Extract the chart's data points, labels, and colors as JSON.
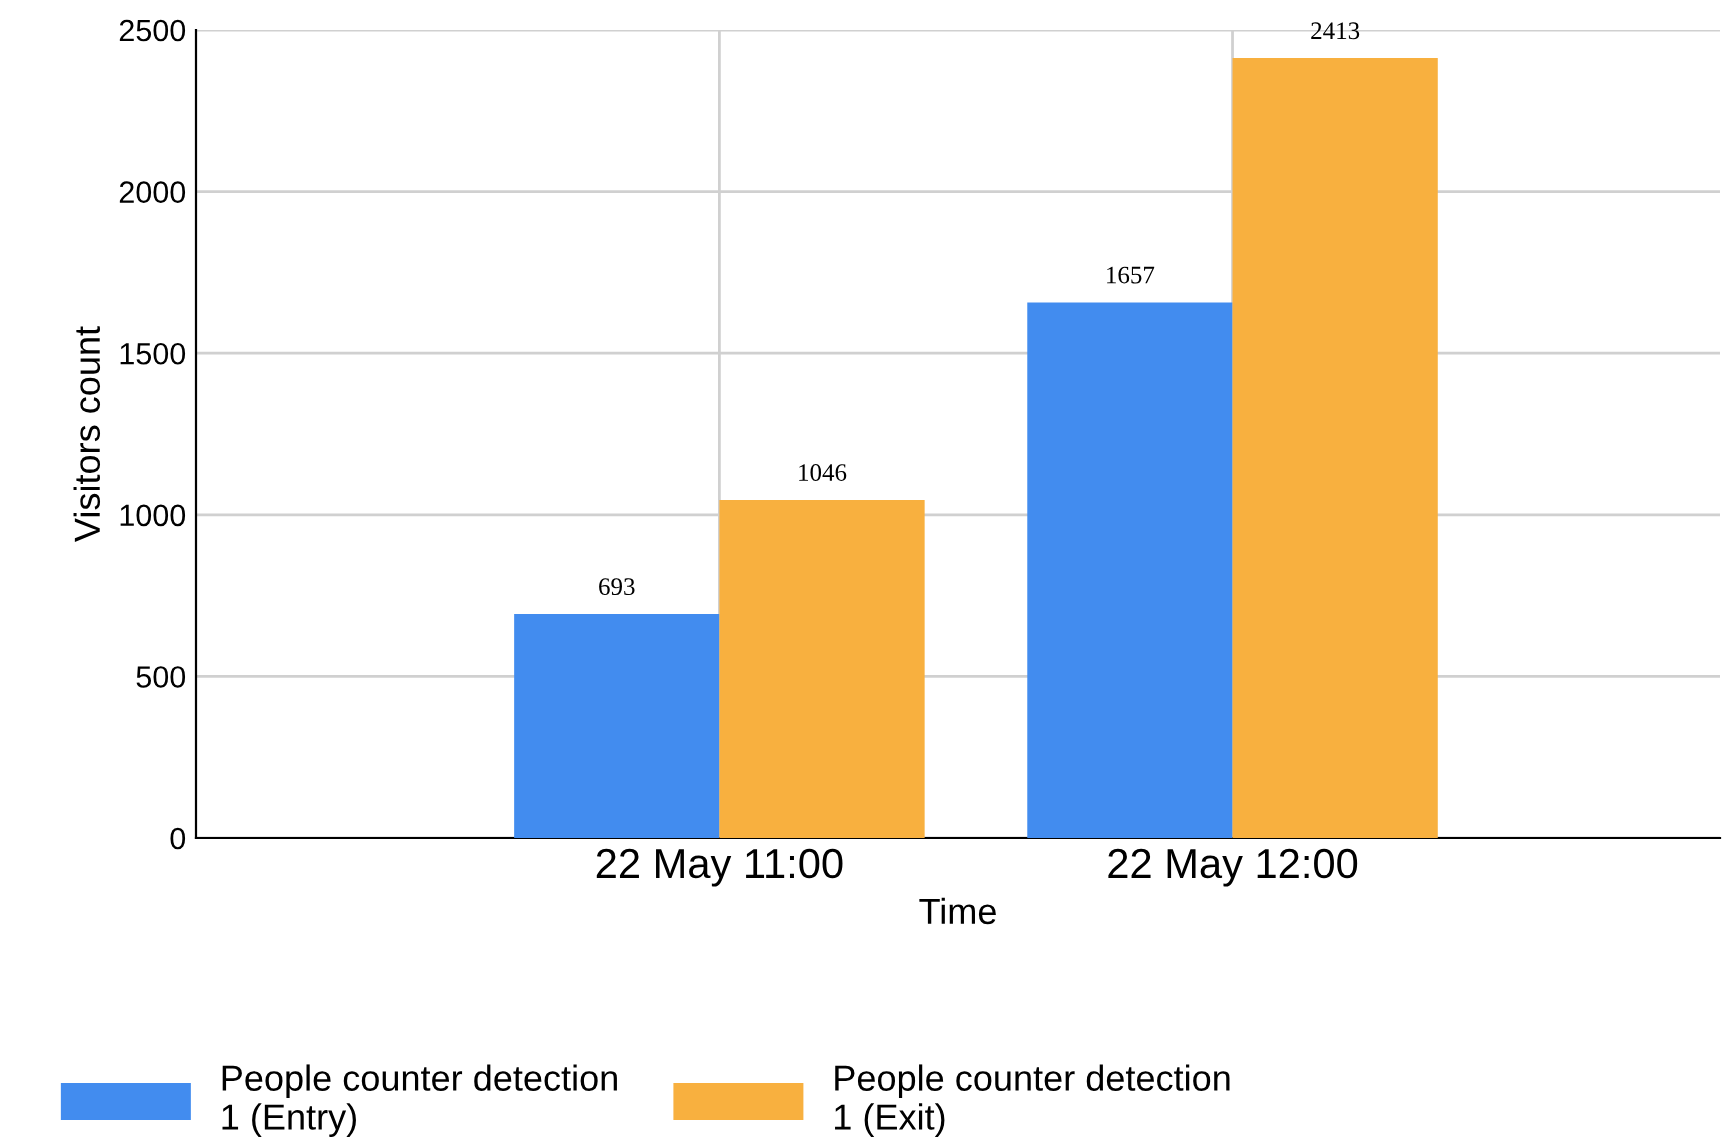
{
  "chart_data": {
    "type": "bar",
    "xlabel": "Time",
    "ylabel": "Visitors count",
    "categories": [
      "22 May 11:00",
      "22 May 12:00"
    ],
    "series": [
      {
        "name": "People counter detection\n1 (Entry)",
        "color": "#428cef",
        "values": [
          693,
          1657
        ]
      },
      {
        "name": "People counter detection\n1 (Exit)",
        "color": "#f8b03f",
        "values": [
          1046,
          2413
        ]
      }
    ],
    "ylim": [
      0,
      2500
    ],
    "yticks": [
      0,
      500,
      1000,
      1500,
      2000,
      2500
    ],
    "grid": true,
    "legend": "bottom",
    "data_labels": true
  }
}
